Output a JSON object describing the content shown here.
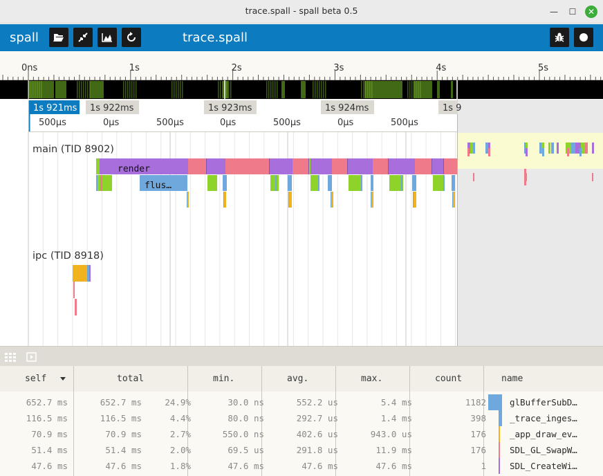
{
  "window": {
    "title": "trace.spall - spall beta 0.5",
    "minimize": "—",
    "maximize": "☐",
    "close": "✕"
  },
  "toolbar": {
    "app_name": "spall",
    "file_name": "trace.spall",
    "buttons": [
      "open-file",
      "collapse",
      "stats",
      "reload",
      "debug",
      "record"
    ]
  },
  "ruler": {
    "labels": [
      "0ns",
      "1s",
      "2s",
      "3s",
      "4s",
      "5s"
    ]
  },
  "minimap": {
    "activity_color": "#4e7d1a"
  },
  "time_markers": {
    "labels": [
      "1s 921ms",
      "1s 922ms",
      "1s 923ms",
      "1s 924ms",
      "1s 9"
    ],
    "active_index": 0,
    "sub_labels": [
      "500µs",
      "0µs",
      "500µs",
      "0µs",
      "500µs",
      "0µs",
      "500µs"
    ]
  },
  "threads": [
    {
      "label": "main (TID 8902)",
      "events": [
        {
          "name": "render",
          "color": "#a86fdc"
        },
        {
          "name": "flus…",
          "color": "#6fa8dc"
        }
      ]
    },
    {
      "label": "ipc (TID 8918)",
      "events": []
    }
  ],
  "colors": {
    "purple": "#a86fdc",
    "pink": "#ee7a8a",
    "green": "#8ed329",
    "blue": "#6fa8dc",
    "orange": "#f0b31e",
    "accent": "#0c7bbf",
    "highlight": "#fbfbd2"
  },
  "stats": {
    "columns": [
      "self",
      "total",
      "min.",
      "avg.",
      "max.",
      "count",
      "name"
    ],
    "sort_column": "self",
    "rows": [
      {
        "self": "652.7 ms",
        "total": "652.7 ms",
        "pct": "24.9%",
        "min": "30.0 ns",
        "avg": "552.2 us",
        "max": "5.4 ms",
        "count": "1182",
        "name": "glBufferSubD…",
        "color": "#6fa8dc",
        "share": 0.249
      },
      {
        "self": "116.5 ms",
        "total": "116.5 ms",
        "pct": "4.4%",
        "min": "80.0 ns",
        "avg": "292.7 us",
        "max": "1.4 ms",
        "count": "398",
        "name": "_trace_inges…",
        "color": "#6fa8dc",
        "share": 0.044
      },
      {
        "self": "70.9 ms",
        "total": "70.9 ms",
        "pct": "2.7%",
        "min": "550.0 ns",
        "avg": "402.6 us",
        "max": "943.0 us",
        "count": "176",
        "name": "_app_draw_ev…",
        "color": "#f0b31e",
        "share": 0.027
      },
      {
        "self": "51.4 ms",
        "total": "51.4 ms",
        "pct": "2.0%",
        "min": "69.5 us",
        "avg": "291.8 us",
        "max": "11.9 ms",
        "count": "176",
        "name": "SDL_GL_SwapW…",
        "color": "#ee7a8a",
        "share": 0.02
      },
      {
        "self": "47.6 ms",
        "total": "47.6 ms",
        "pct": "1.8%",
        "min": "47.6 ms",
        "avg": "47.6 ms",
        "max": "47.6 ms",
        "count": "1",
        "name": "SDL_CreateWi…",
        "color": "#a86fdc",
        "share": 0.018
      }
    ]
  }
}
